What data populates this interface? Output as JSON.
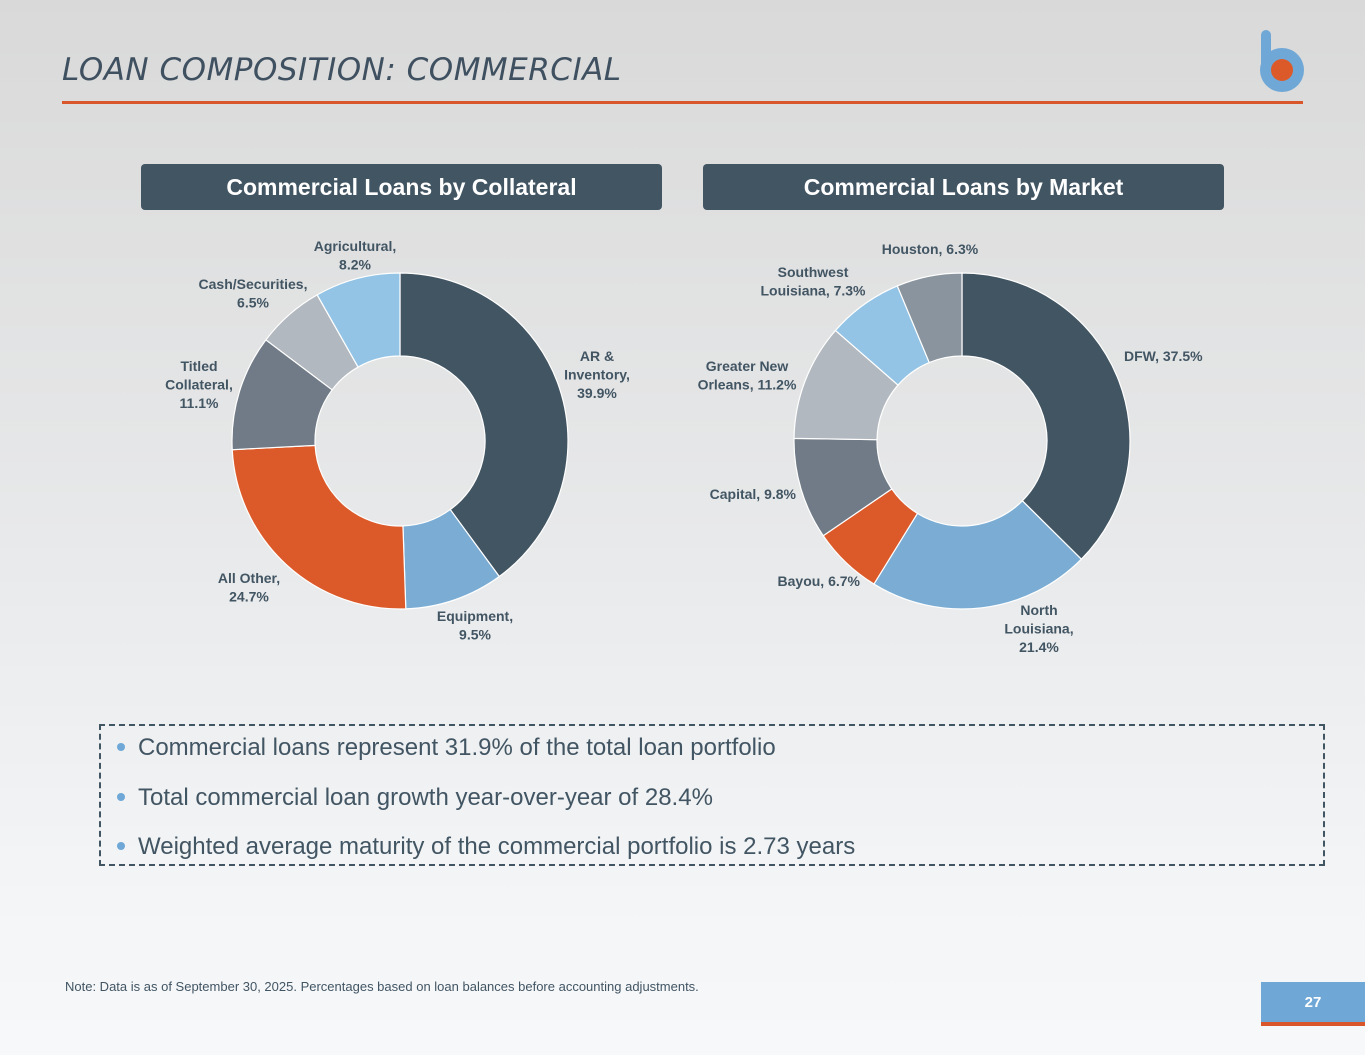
{
  "page": {
    "title": "LOAN COMPOSITION: COMMERCIAL",
    "note": "Note: Data is as of September 30, 2025. Percentages based on loan balances before accounting adjustments.",
    "page_number": "27"
  },
  "colors": {
    "dark_slate": "#425563",
    "accent_orange": "#d9562a",
    "light_blue": "#6fa8d6"
  },
  "bullets": [
    "Commercial loans represent 31.9% of the total loan portfolio",
    "Total commercial loan growth year-over-year of 28.4%",
    "Weighted average maturity of the commercial portfolio is 2.73 years"
  ],
  "chart_data": [
    {
      "type": "pie",
      "donut": true,
      "title": "Commercial Loans by Collateral",
      "slices": [
        {
          "name": "AR & Inventory",
          "value": 39.9,
          "color": "#425563",
          "label_lines": [
            "AR &",
            "Inventory,",
            "39.9%"
          ]
        },
        {
          "name": "Equipment",
          "value": 9.5,
          "color": "#7badd4",
          "label_lines": [
            "Equipment,",
            "9.5%"
          ]
        },
        {
          "name": "All Other",
          "value": 24.7,
          "color": "#dc5a2a",
          "label_lines": [
            "All Other,",
            "24.7%"
          ]
        },
        {
          "name": "Titled Collateral",
          "value": 11.1,
          "color": "#707b87",
          "label_lines": [
            "Titled",
            "Collateral,",
            "11.1%"
          ]
        },
        {
          "name": "Cash/Securities",
          "value": 6.5,
          "color": "#b2b8bf",
          "label_lines": [
            "Cash/Securities,",
            "6.5%"
          ]
        },
        {
          "name": "Agricultural",
          "value": 8.2,
          "color": "#93c4e6",
          "label_lines": [
            "Agricultural,",
            "8.2%"
          ]
        }
      ]
    },
    {
      "type": "pie",
      "donut": true,
      "title": "Commercial Loans by Market",
      "slices": [
        {
          "name": "DFW",
          "value": 37.5,
          "color": "#425563",
          "label_lines": [
            "DFW, 37.5%"
          ]
        },
        {
          "name": "North Louisiana",
          "value": 21.4,
          "color": "#7badd4",
          "label_lines": [
            "North",
            "Louisiana,",
            "21.4%"
          ]
        },
        {
          "name": "Bayou",
          "value": 6.7,
          "color": "#dc5a2a",
          "label_lines": [
            "Bayou, 6.7%"
          ]
        },
        {
          "name": "Capital",
          "value": 9.8,
          "color": "#707b87",
          "label_lines": [
            "Capital, 9.8%"
          ]
        },
        {
          "name": "Greater New Orleans",
          "value": 11.2,
          "color": "#b2b8bf",
          "label_lines": [
            "Greater New",
            "Orleans, 11.2%"
          ]
        },
        {
          "name": "Southwest Louisiana",
          "value": 7.3,
          "color": "#93c4e6",
          "label_lines": [
            "Southwest",
            "Louisiana, 7.3%"
          ]
        },
        {
          "name": "Houston",
          "value": 6.3,
          "color": "#8a949e",
          "label_lines": [
            "Houston, 6.3%"
          ]
        }
      ]
    }
  ]
}
